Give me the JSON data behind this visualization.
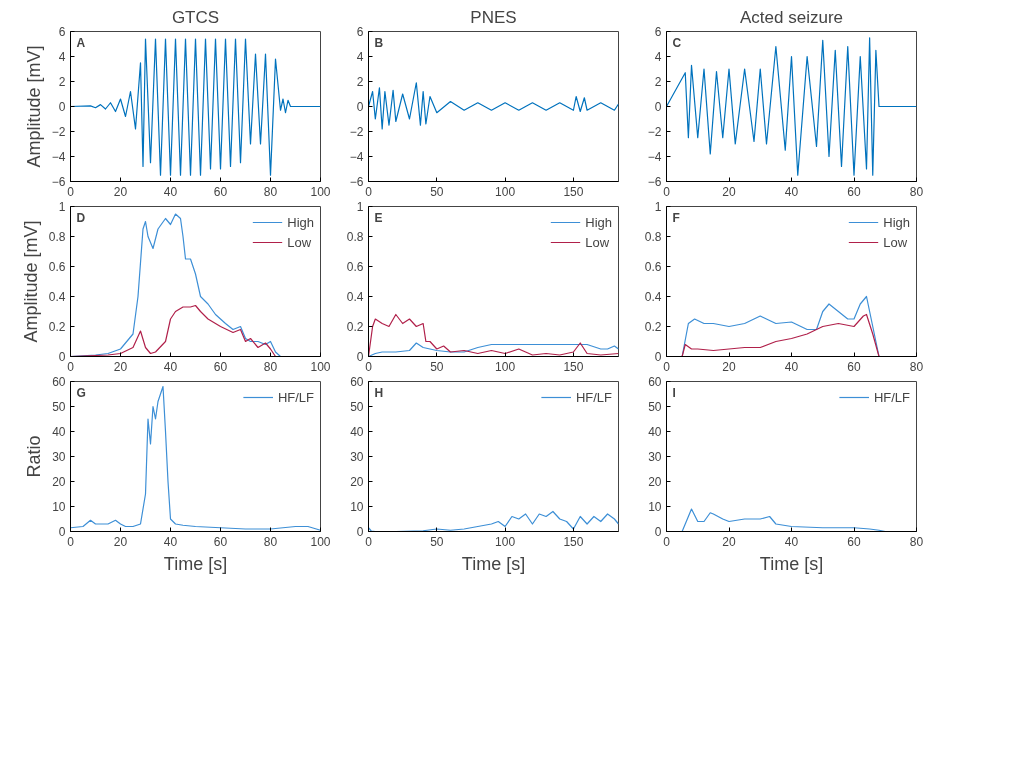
{
  "chart_data": [
    {
      "type": "line",
      "title": "GTCS",
      "ylabel": "Amplitude [mV]",
      "annotations": [
        "A"
      ],
      "xlim": [
        0,
        100
      ],
      "xticks": [
        0,
        20,
        40,
        60,
        80,
        100
      ],
      "ylim": [
        -6,
        6
      ],
      "yticks": [
        -6,
        -4,
        -2,
        0,
        2,
        4,
        6
      ],
      "grid": false,
      "legend": false,
      "series": [
        {
          "color": "#0072bd",
          "x": [
            0,
            8,
            10,
            12,
            14,
            16,
            18,
            20,
            22,
            24,
            26,
            28,
            29,
            30,
            32,
            34,
            36,
            38,
            40,
            42,
            44,
            46,
            48,
            50,
            52,
            54,
            56,
            58,
            60,
            62,
            64,
            66,
            68,
            70,
            72,
            74,
            76,
            78,
            80,
            82,
            84,
            85,
            86,
            87,
            88,
            100
          ],
          "values": [
            0,
            0.05,
            -0.1,
            0.15,
            -0.2,
            0.3,
            -0.4,
            0.6,
            -0.8,
            1.2,
            -1.8,
            3.5,
            -4.8,
            5.4,
            -4.5,
            5.4,
            -5.5,
            5.4,
            -5.5,
            5.4,
            -5.5,
            5.4,
            -5.5,
            5.4,
            -5.5,
            5.4,
            -5,
            5.4,
            -5,
            5.4,
            -4.8,
            5.4,
            -4.5,
            5.4,
            -3,
            4.2,
            -3,
            4.2,
            -5.5,
            3.8,
            -0.3,
            0.6,
            -0.5,
            0.5,
            0,
            0
          ]
        }
      ]
    },
    {
      "type": "line",
      "title": "PNES",
      "annotations": [
        "B"
      ],
      "xlim": [
        0,
        183
      ],
      "xticks": [
        0,
        50,
        100,
        150
      ],
      "ylim": [
        -6,
        6
      ],
      "yticks": [
        -6,
        -4,
        -2,
        0,
        2,
        4,
        6
      ],
      "grid": false,
      "legend": false,
      "series": [
        {
          "color": "#0072bd",
          "x": [
            0,
            3,
            5,
            8,
            10,
            12,
            15,
            18,
            20,
            25,
            30,
            35,
            38,
            40,
            42,
            45,
            50,
            60,
            70,
            80,
            90,
            100,
            110,
            120,
            130,
            140,
            150,
            152,
            155,
            158,
            160,
            170,
            180,
            183
          ],
          "values": [
            0,
            1.2,
            -1,
            1.5,
            -1.8,
            1.2,
            -1.5,
            1.3,
            -1.2,
            1,
            -1,
            1.9,
            -1.5,
            1.2,
            -1.4,
            0.8,
            -0.5,
            0.4,
            -0.3,
            0.3,
            -0.3,
            0.3,
            -0.3,
            0.3,
            -0.3,
            0.3,
            -0.3,
            0.8,
            -0.4,
            0.7,
            -0.3,
            0.3,
            -0.3,
            0.2
          ]
        }
      ]
    },
    {
      "type": "line",
      "title": "Acted seizure",
      "annotations": [
        "C"
      ],
      "xlim": [
        0,
        80
      ],
      "xticks": [
        0,
        20,
        40,
        60,
        80
      ],
      "ylim": [
        -6,
        6
      ],
      "yticks": [
        -6,
        -4,
        -2,
        0,
        2,
        4,
        6
      ],
      "grid": false,
      "legend": false,
      "series": [
        {
          "color": "#0072bd",
          "x": [
            0,
            6,
            7,
            8,
            10,
            12,
            14,
            16,
            18,
            20,
            22,
            25,
            28,
            30,
            32,
            35,
            38,
            40,
            42,
            45,
            48,
            50,
            52,
            54,
            56,
            58,
            60,
            62,
            64,
            65,
            66,
            67,
            68,
            80
          ],
          "values": [
            0,
            2.7,
            -2.5,
            3.3,
            -2.5,
            3,
            -3.8,
            2.8,
            -2.5,
            3,
            -3,
            3,
            -2.8,
            3,
            -3,
            4.8,
            -3.5,
            4,
            -5.5,
            4,
            -3.2,
            5.3,
            -4,
            4.5,
            -4.8,
            4.8,
            -5.5,
            4,
            -5,
            5.5,
            -5.5,
            4.5,
            0,
            0
          ]
        }
      ]
    },
    {
      "type": "line",
      "ylabel": "Amplitude [mV]",
      "annotations": [
        "D"
      ],
      "xlim": [
        0,
        100
      ],
      "xticks": [
        0,
        20,
        40,
        60,
        80,
        100
      ],
      "ylim": [
        0,
        1
      ],
      "yticks": [
        0,
        0.2,
        0.4,
        0.6,
        0.8,
        1
      ],
      "grid": false,
      "legend": "top right",
      "series": [
        {
          "name": "High",
          "color": "#3d8fd6",
          "x": [
            0,
            10,
            15,
            20,
            25,
            27,
            29,
            30,
            31,
            33,
            35,
            38,
            40,
            42,
            44,
            45,
            46,
            48,
            50,
            52,
            55,
            58,
            60,
            62,
            65,
            68,
            70,
            72,
            75,
            78,
            80,
            82,
            84,
            100
          ],
          "values": [
            0,
            0.01,
            0.02,
            0.05,
            0.15,
            0.4,
            0.85,
            0.9,
            0.8,
            0.72,
            0.85,
            0.92,
            0.88,
            0.95,
            0.92,
            0.8,
            0.65,
            0.65,
            0.55,
            0.4,
            0.35,
            0.28,
            0.25,
            0.22,
            0.18,
            0.2,
            0.12,
            0.1,
            0.1,
            0.08,
            0.1,
            0.03,
            0,
            0
          ]
        },
        {
          "name": "Low",
          "color": "#b0204a",
          "x": [
            0,
            15,
            20,
            25,
            28,
            30,
            32,
            34,
            38,
            40,
            42,
            45,
            48,
            50,
            52,
            55,
            60,
            65,
            68,
            70,
            72,
            75,
            78,
            80,
            82,
            100
          ],
          "values": [
            0,
            0.01,
            0.02,
            0.06,
            0.17,
            0.06,
            0.02,
            0.03,
            0.1,
            0.25,
            0.3,
            0.33,
            0.33,
            0.34,
            0.3,
            0.25,
            0.2,
            0.16,
            0.18,
            0.1,
            0.12,
            0.06,
            0.09,
            0.05,
            0,
            0
          ]
        }
      ]
    },
    {
      "type": "line",
      "annotations": [
        "E"
      ],
      "xlim": [
        0,
        183
      ],
      "xticks": [
        0,
        50,
        100,
        150
      ],
      "ylim": [
        0,
        1
      ],
      "yticks": [
        0,
        0.2,
        0.4,
        0.6,
        0.8,
        1
      ],
      "grid": false,
      "legend": "top right",
      "series": [
        {
          "name": "High",
          "color": "#3d8fd6",
          "x": [
            0,
            5,
            10,
            20,
            30,
            35,
            40,
            45,
            50,
            60,
            70,
            80,
            90,
            100,
            120,
            140,
            160,
            170,
            175,
            180,
            183
          ],
          "values": [
            0,
            0.02,
            0.03,
            0.03,
            0.04,
            0.09,
            0.06,
            0.05,
            0.04,
            0.03,
            0.03,
            0.06,
            0.08,
            0.08,
            0.08,
            0.08,
            0.08,
            0.05,
            0.05,
            0.07,
            0.05
          ]
        },
        {
          "name": "Low",
          "color": "#b0204a",
          "x": [
            0,
            3,
            5,
            10,
            15,
            20,
            25,
            30,
            35,
            40,
            42,
            45,
            50,
            55,
            60,
            70,
            80,
            90,
            100,
            110,
            120,
            130,
            140,
            150,
            155,
            160,
            170,
            183
          ],
          "values": [
            0,
            0.2,
            0.25,
            0.22,
            0.2,
            0.28,
            0.22,
            0.25,
            0.2,
            0.22,
            0.1,
            0.1,
            0.05,
            0.07,
            0.03,
            0.04,
            0.02,
            0.04,
            0.02,
            0.05,
            0.01,
            0.02,
            0.01,
            0.03,
            0.09,
            0.02,
            0.01,
            0.02
          ]
        }
      ]
    },
    {
      "type": "line",
      "annotations": [
        "F"
      ],
      "xlim": [
        0,
        80
      ],
      "xticks": [
        0,
        20,
        40,
        60,
        80
      ],
      "ylim": [
        0,
        1
      ],
      "yticks": [
        0,
        0.2,
        0.4,
        0.6,
        0.8,
        1
      ],
      "grid": false,
      "legend": "top right",
      "series": [
        {
          "name": "High",
          "color": "#3d8fd6",
          "x": [
            0,
            5,
            7,
            9,
            12,
            15,
            20,
            25,
            30,
            35,
            40,
            45,
            48,
            50,
            52,
            55,
            58,
            60,
            62,
            64,
            66,
            68,
            80
          ],
          "values": [
            0,
            0,
            0.22,
            0.25,
            0.22,
            0.22,
            0.2,
            0.22,
            0.27,
            0.22,
            0.23,
            0.18,
            0.18,
            0.3,
            0.35,
            0.3,
            0.25,
            0.25,
            0.35,
            0.4,
            0.2,
            0,
            0
          ]
        },
        {
          "name": "Low",
          "color": "#b0204a",
          "x": [
            0,
            5,
            6,
            8,
            10,
            15,
            20,
            25,
            30,
            35,
            40,
            45,
            50,
            55,
            60,
            63,
            64,
            66,
            68,
            80
          ],
          "values": [
            0,
            0,
            0.08,
            0.05,
            0.05,
            0.04,
            0.05,
            0.06,
            0.06,
            0.1,
            0.12,
            0.15,
            0.2,
            0.22,
            0.2,
            0.27,
            0.28,
            0.15,
            0,
            0
          ]
        }
      ]
    },
    {
      "type": "line",
      "ylabel": "Ratio",
      "xlabel": "Time [s]",
      "annotations": [
        "G"
      ],
      "xlim": [
        0,
        100
      ],
      "xticks": [
        0,
        20,
        40,
        60,
        80,
        100
      ],
      "ylim": [
        0,
        60
      ],
      "yticks": [
        0,
        10,
        20,
        30,
        40,
        50,
        60
      ],
      "grid": false,
      "legend": "top right",
      "series": [
        {
          "name": "HF/LF",
          "color": "#3d8fd6",
          "x": [
            0,
            5,
            8,
            10,
            15,
            18,
            20,
            22,
            25,
            28,
            30,
            31,
            32,
            33,
            34,
            35,
            36,
            37,
            38,
            39,
            40,
            42,
            45,
            50,
            60,
            70,
            80,
            90,
            95,
            100
          ],
          "values": [
            1.5,
            2,
            4.5,
            3,
            3,
            4.5,
            3,
            2,
            2,
            3,
            15,
            45,
            35,
            50,
            45,
            52,
            55,
            58,
            40,
            20,
            5,
            3,
            2.5,
            2,
            1.5,
            1,
            1,
            2,
            2,
            0.5
          ]
        }
      ]
    },
    {
      "type": "line",
      "xlabel": "Time [s]",
      "annotations": [
        "H"
      ],
      "xlim": [
        0,
        183
      ],
      "xticks": [
        0,
        50,
        100,
        150
      ],
      "ylim": [
        0,
        60
      ],
      "yticks": [
        0,
        10,
        20,
        30,
        40,
        50,
        60
      ],
      "grid": false,
      "legend": "top right",
      "series": [
        {
          "name": "HF/LF",
          "color": "#3d8fd6",
          "x": [
            0,
            2,
            5,
            20,
            40,
            50,
            60,
            70,
            80,
            90,
            95,
            100,
            105,
            110,
            115,
            120,
            125,
            130,
            135,
            140,
            145,
            150,
            155,
            160,
            165,
            170,
            175,
            180,
            183
          ],
          "values": [
            1.5,
            0.2,
            0,
            0,
            0.3,
            1,
            0.5,
            1,
            2,
            3,
            4,
            2,
            6,
            5,
            7,
            3,
            7,
            6,
            8,
            5,
            4,
            1,
            6,
            3,
            6,
            4,
            7,
            5,
            3
          ]
        }
      ]
    },
    {
      "type": "line",
      "xlabel": "Time [s]",
      "annotations": [
        "I"
      ],
      "xlim": [
        0,
        80
      ],
      "xticks": [
        0,
        20,
        40,
        60,
        80
      ],
      "ylim": [
        0,
        60
      ],
      "yticks": [
        0,
        10,
        20,
        30,
        40,
        50,
        60
      ],
      "grid": false,
      "legend": "top right",
      "series": [
        {
          "name": "HF/LF",
          "color": "#3d8fd6",
          "x": [
            0,
            5,
            6,
            8,
            10,
            12,
            14,
            15,
            18,
            20,
            25,
            30,
            33,
            35,
            40,
            50,
            60,
            65,
            68,
            70,
            80
          ],
          "values": [
            0,
            0,
            3,
            9,
            4,
            4,
            7.5,
            7,
            5,
            4,
            5,
            5,
            6,
            3,
            2,
            1.5,
            1.5,
            1,
            0.5,
            0,
            0
          ]
        }
      ]
    }
  ]
}
